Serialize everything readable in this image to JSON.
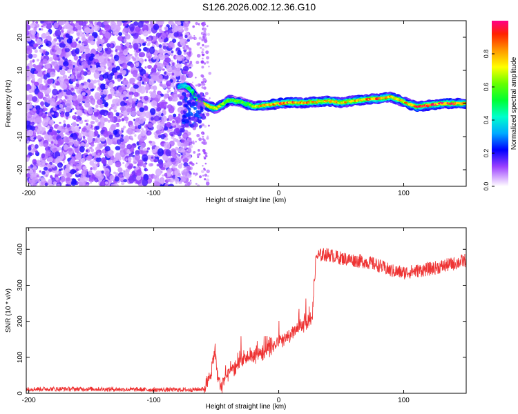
{
  "title": "S126.2026.002.12.36.G10",
  "colorbar": {
    "label": "Normalized spectral amplitude",
    "ticks": [
      "0.0",
      "0.2",
      "0.4",
      "0.6",
      "0.8"
    ],
    "range": [
      0,
      1
    ]
  },
  "chart_data": [
    {
      "type": "heatmap",
      "title": "",
      "xlabel": "Height of straight line (km)",
      "ylabel": "Frequency (Hz)",
      "xlim": [
        -202,
        150
      ],
      "ylim": [
        -25,
        25
      ],
      "xticks": [
        -200,
        -100,
        0,
        100
      ],
      "xtick_labels": [
        "-200",
        "-100",
        "0",
        "100"
      ],
      "yticks": [
        20,
        10,
        0,
        -10,
        -20
      ],
      "ytick_labels": [
        "20",
        "10",
        "0",
        "-10",
        "-20"
      ],
      "description_regions": {
        "noise_region_x": [
          -202,
          -75
        ],
        "transition_x": [
          -75,
          -55
        ],
        "signal_region_x": [
          -55,
          150
        ]
      },
      "ridge": {
        "x": [
          -80,
          -75,
          -70,
          -65,
          -60,
          -55,
          -50,
          -40,
          -30,
          -20,
          -10,
          0,
          10,
          20,
          30,
          40,
          50,
          60,
          70,
          80,
          90,
          100,
          110,
          120,
          130,
          140,
          150
        ],
        "freq": [
          5,
          5.5,
          4,
          1,
          0,
          -1,
          -1.5,
          1,
          0.5,
          -1,
          -0.5,
          0,
          0.3,
          0.2,
          0.5,
          0.8,
          0.2,
          0.8,
          1.3,
          1.5,
          2,
          0.5,
          -1,
          -0.5,
          0,
          0,
          0
        ],
        "amplitude": [
          0.3,
          0.4,
          0.5,
          0.6,
          0.7,
          0.8,
          0.8,
          0.6,
          0.6,
          0.7,
          0.85,
          0.95,
          0.9,
          0.85,
          0.8,
          0.85,
          0.8,
          0.85,
          0.85,
          0.9,
          0.85,
          0.8,
          0.95,
          0.95,
          0.95,
          0.95,
          0.9
        ]
      }
    },
    {
      "type": "line",
      "title": "",
      "xlabel": "Height of straight line (km)",
      "ylabel": "SNR (10 * v/v)",
      "xlim": [
        -202,
        150
      ],
      "ylim": [
        0,
        460
      ],
      "xticks": [
        -200,
        -100,
        0,
        100
      ],
      "xtick_labels": [
        "-200",
        "-100",
        "0",
        "100"
      ],
      "yticks": [
        0,
        100,
        200,
        300,
        400
      ],
      "ytick_labels": [
        "0",
        "100",
        "200",
        "300",
        "400"
      ],
      "color": "#ee3333",
      "series": [
        {
          "name": "SNR",
          "x": [
            -202,
            -150,
            -100,
            -70,
            -60,
            -56,
            -53,
            -51,
            -49,
            -46,
            -43,
            -40,
            -35,
            -30,
            -25,
            -20,
            -10,
            0,
            10,
            20,
            24,
            27,
            28,
            30,
            35,
            40,
            50,
            60,
            70,
            80,
            90,
            100,
            110,
            120,
            130,
            140,
            150
          ],
          "y": [
            12,
            12,
            10,
            10,
            12,
            35,
            80,
            125,
            40,
            20,
            40,
            60,
            70,
            90,
            100,
            105,
            120,
            140,
            165,
            190,
            205,
            215,
            290,
            380,
            385,
            385,
            375,
            370,
            365,
            355,
            340,
            335,
            340,
            345,
            352,
            360,
            370
          ]
        }
      ],
      "noise": {
        "amplitude_low": 6,
        "amplitude_mid": 30,
        "amplitude_high": 12
      }
    }
  ]
}
